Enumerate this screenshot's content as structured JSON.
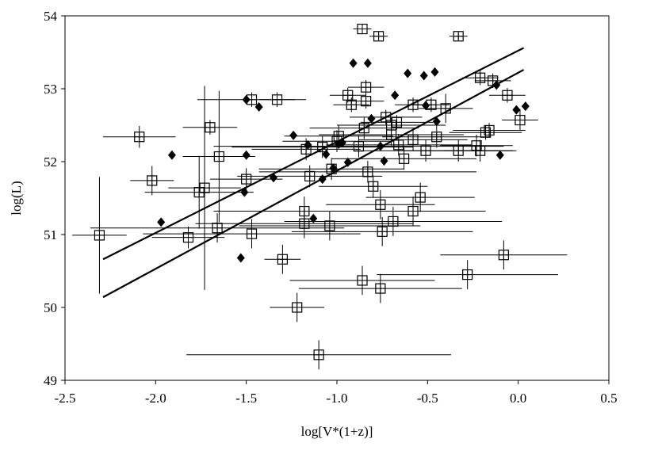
{
  "chart_data": {
    "type": "scatter",
    "x_label": "log[V*(1+z)]",
    "y_label": "log(L)",
    "xlim": [
      -2.5,
      0.5
    ],
    "ylim": [
      49,
      54
    ],
    "xticks": [
      -2.5,
      {
        "value": -2,
        "label": "-2.0"
      },
      -1.5,
      {
        "value": -1,
        "label": "-1.0"
      },
      -0.5,
      {
        "value": 0,
        "label": "0.0"
      },
      0.5
    ],
    "yticks": [
      49,
      50,
      51,
      52,
      53,
      54
    ],
    "series": [
      {
        "marker": "square",
        "color": "#000000",
        "x": [
          -2.31,
          -2.09,
          -2.02,
          -1.82,
          -1.76,
          -1.73,
          -1.7,
          -1.65,
          -1.66,
          -1.5,
          -1.47,
          -1.47,
          -1.33,
          -1.3,
          -1.18,
          -1.18,
          -1.22,
          -1.1,
          -1.15,
          -1.17,
          -1.08,
          -1.04,
          -1.03,
          -1.0,
          -0.99,
          -0.86,
          -0.77,
          -0.33,
          -0.94,
          -0.92,
          -0.84,
          -0.84,
          -0.83,
          -0.88,
          -0.85,
          -0.8,
          -0.86,
          -0.76,
          -0.76,
          -0.75,
          -0.73,
          -0.7,
          -0.7,
          -0.69,
          -0.67,
          -0.66,
          -0.63,
          -0.58,
          -0.58,
          -0.58,
          -0.54,
          -0.51,
          -0.48,
          -0.45,
          -0.4,
          -0.33,
          -0.28,
          -0.23,
          -0.21,
          -0.21,
          -0.18,
          -0.16,
          -0.14,
          -0.08,
          -0.06,
          0.01
        ],
        "values": [
          50.99,
          52.34,
          51.74,
          50.96,
          51.58,
          51.64,
          52.47,
          52.07,
          51.09,
          51.76,
          51.01,
          52.85,
          52.85,
          50.66,
          51.32,
          51.15,
          50.0,
          49.35,
          51.8,
          52.17,
          52.2,
          51.12,
          51.9,
          52.28,
          52.35,
          53.82,
          53.72,
          53.72,
          52.91,
          52.78,
          52.83,
          53.02,
          51.86,
          52.21,
          52.46,
          51.66,
          50.37,
          50.26,
          51.41,
          51.04,
          52.61,
          52.5,
          52.37,
          51.18,
          52.54,
          52.23,
          52.04,
          51.32,
          52.3,
          52.78,
          51.51,
          52.15,
          52.78,
          52.34,
          52.73,
          52.15,
          50.45,
          52.22,
          52.15,
          53.15,
          52.4,
          52.43,
          53.11,
          50.72,
          52.91,
          52.57
        ],
        "xerr": [
          0.15,
          0.2,
          0.12,
          0.2,
          0.3,
          0.2,
          0.15,
          0.2,
          0.7,
          0.2,
          0.6,
          0.3,
          0.1,
          0.1,
          0.5,
          0.6,
          0.15,
          0.73,
          0.4,
          0.3,
          0.5,
          0.5,
          0.4,
          0.3,
          0.3,
          0.05,
          0.05,
          0.05,
          0.1,
          0.1,
          0.1,
          0.1,
          0.6,
          0.8,
          0.3,
          0.3,
          0.4,
          0.45,
          0.3,
          0.5,
          0.2,
          0.3,
          0.4,
          0.6,
          0.2,
          0.4,
          0.4,
          0.4,
          0.3,
          0.1,
          0.3,
          0.4,
          0.1,
          0.3,
          0.15,
          0.3,
          0.5,
          0.2,
          0.2,
          0.1,
          0.2,
          0.2,
          0.1,
          0.35,
          0.1,
          0.1
        ],
        "yerr": [
          0.8,
          0.15,
          0.2,
          0.15,
          0.5,
          1.4,
          0.1,
          0.9,
          0.2,
          0.15,
          0.2,
          0.1,
          0.1,
          0.2,
          0.2,
          0.2,
          0.2,
          0.2,
          0.15,
          0.15,
          0.15,
          0.2,
          0.15,
          0.15,
          0.15,
          0.05,
          0.05,
          0.05,
          0.1,
          0.1,
          0.1,
          0.1,
          0.15,
          0.15,
          0.15,
          0.15,
          0.2,
          0.2,
          0.2,
          0.2,
          0.1,
          0.1,
          0.15,
          0.2,
          0.1,
          0.15,
          0.15,
          0.2,
          0.15,
          0.1,
          0.2,
          0.15,
          0.1,
          0.15,
          0.2,
          0.15,
          0.2,
          0.15,
          0.15,
          0.1,
          0.1,
          0.1,
          0.1,
          0.2,
          0.1,
          0.15
        ]
      },
      {
        "marker": "diamond",
        "color": "#000000",
        "x": [
          -1.91,
          -1.97,
          -1.5,
          -1.51,
          -1.53,
          -1.5,
          -1.43,
          -1.35,
          -1.24,
          -1.16,
          -1.13,
          -1.08,
          -1.06,
          -1.02,
          -0.99,
          -0.97,
          -0.94,
          -0.91,
          -0.83,
          -0.81,
          -0.76,
          -0.74,
          -0.68,
          -0.61,
          -0.52,
          -0.51,
          -0.46,
          -0.45,
          -0.12,
          -0.1,
          -0.01,
          0.04
        ],
        "values": [
          52.09,
          51.17,
          52.09,
          51.58,
          50.68,
          52.85,
          52.75,
          51.78,
          52.36,
          52.23,
          51.22,
          51.76,
          52.1,
          51.91,
          52.24,
          52.26,
          51.99,
          53.35,
          53.35,
          52.59,
          52.21,
          52.01,
          52.91,
          53.21,
          53.18,
          52.77,
          53.23,
          52.55,
          53.05,
          52.09,
          52.71,
          52.76
        ]
      }
    ],
    "lines": [
      {
        "color": "#000000",
        "x": [
          -2.29,
          0.03
        ],
        "values": [
          50.66,
          53.56
        ]
      },
      {
        "color": "#000000",
        "x": [
          -2.29,
          0.03
        ],
        "values": [
          50.14,
          53.26
        ]
      }
    ]
  }
}
